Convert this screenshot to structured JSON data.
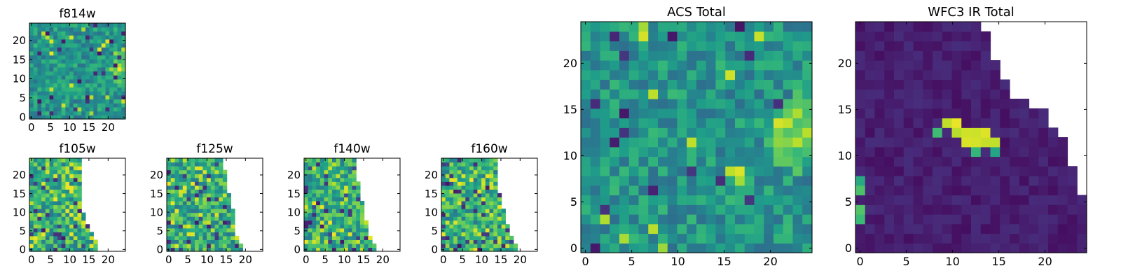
{
  "chart_data": [
    {
      "id": "f814w",
      "type": "heatmap",
      "title": "f814w",
      "xlim": [
        0,
        24
      ],
      "ylim": [
        0,
        24
      ],
      "xticks": [
        0,
        5,
        10,
        15,
        20
      ],
      "yticks": [
        0,
        5,
        10,
        15,
        20
      ],
      "grid": 24,
      "colormap": "viridis",
      "pattern": "acs",
      "edge": [
        24,
        24,
        24,
        24,
        24,
        24,
        24,
        24,
        24,
        24,
        24,
        24,
        24,
        24,
        24,
        24,
        24,
        24,
        24,
        24,
        24,
        24,
        24,
        24
      ],
      "seed": 11
    },
    {
      "id": "f105w",
      "type": "heatmap",
      "title": "f105w",
      "xlim": [
        0,
        24
      ],
      "ylim": [
        0,
        24
      ],
      "xticks": [
        0,
        5,
        10,
        15,
        20
      ],
      "yticks": [
        0,
        5,
        10,
        15,
        20
      ],
      "grid": 24,
      "colormap": "viridis",
      "pattern": "ir_band",
      "edge": [
        17,
        17,
        17,
        16,
        16,
        15,
        15,
        14,
        14,
        14,
        13,
        13,
        13,
        13,
        13,
        13,
        13,
        13,
        13,
        13,
        13,
        13,
        13,
        13
      ],
      "seed": 23
    },
    {
      "id": "f125w",
      "type": "heatmap",
      "title": "f125w",
      "xlim": [
        0,
        24
      ],
      "ylim": [
        0,
        24
      ],
      "xticks": [
        0,
        5,
        10,
        15,
        20
      ],
      "yticks": [
        0,
        5,
        10,
        15,
        20
      ],
      "grid": 24,
      "colormap": "viridis",
      "pattern": "ir_band",
      "edge": [
        19,
        19,
        18,
        18,
        17,
        17,
        17,
        17,
        17,
        17,
        17,
        16,
        16,
        16,
        16,
        15,
        15,
        15,
        15,
        15,
        15,
        14,
        14,
        14
      ],
      "seed": 37
    },
    {
      "id": "f140w",
      "type": "heatmap",
      "title": "f140w",
      "xlim": [
        0,
        24
      ],
      "ylim": [
        0,
        24
      ],
      "xticks": [
        0,
        5,
        10,
        15,
        20
      ],
      "yticks": [
        0,
        5,
        10,
        15,
        20
      ],
      "grid": 24,
      "colormap": "viridis",
      "pattern": "ir_band",
      "edge": [
        18,
        18,
        17,
        17,
        16,
        16,
        16,
        16,
        15,
        15,
        15,
        15,
        15,
        14,
        14,
        14,
        14,
        14,
        13,
        13,
        13,
        13,
        13,
        13
      ],
      "seed": 53
    },
    {
      "id": "f160w",
      "type": "heatmap",
      "title": "f160w",
      "xlim": [
        0,
        24
      ],
      "ylim": [
        0,
        24
      ],
      "xticks": [
        0,
        5,
        10,
        15,
        20
      ],
      "yticks": [
        0,
        5,
        10,
        15,
        20
      ],
      "grid": 24,
      "colormap": "viridis",
      "pattern": "ir_band",
      "edge": [
        19,
        19,
        18,
        18,
        17,
        17,
        17,
        16,
        16,
        16,
        16,
        15,
        15,
        15,
        15,
        14,
        14,
        14,
        14,
        14,
        14,
        14,
        14,
        14
      ],
      "seed": 71
    },
    {
      "id": "acs_total",
      "type": "heatmap",
      "title": "ACS Total",
      "xlim": [
        0,
        24
      ],
      "ylim": [
        0,
        24
      ],
      "xticks": [
        0,
        5,
        10,
        15,
        20
      ],
      "yticks": [
        0,
        5,
        10,
        15,
        20
      ],
      "grid": 24,
      "colormap": "viridis",
      "pattern": "acs",
      "edge": [
        24,
        24,
        24,
        24,
        24,
        24,
        24,
        24,
        24,
        24,
        24,
        24,
        24,
        24,
        24,
        24,
        24,
        24,
        24,
        24,
        24,
        24,
        24,
        24
      ],
      "seed": 97
    },
    {
      "id": "wfc3_ir_total",
      "type": "heatmap",
      "title": "WFC3 IR Total",
      "xlim": [
        0,
        24
      ],
      "ylim": [
        0,
        24
      ],
      "xticks": [
        0,
        5,
        10,
        15,
        20
      ],
      "yticks": [
        0,
        5,
        10,
        15,
        20
      ],
      "grid": 24,
      "colormap": "viridis",
      "pattern": "ir_total",
      "edge": [
        24,
        24,
        24,
        24,
        24,
        24,
        23,
        23,
        23,
        22,
        22,
        22,
        21,
        20,
        20,
        18,
        16,
        16,
        15,
        15,
        14,
        14,
        14,
        13
      ],
      "seed": 131
    }
  ]
}
